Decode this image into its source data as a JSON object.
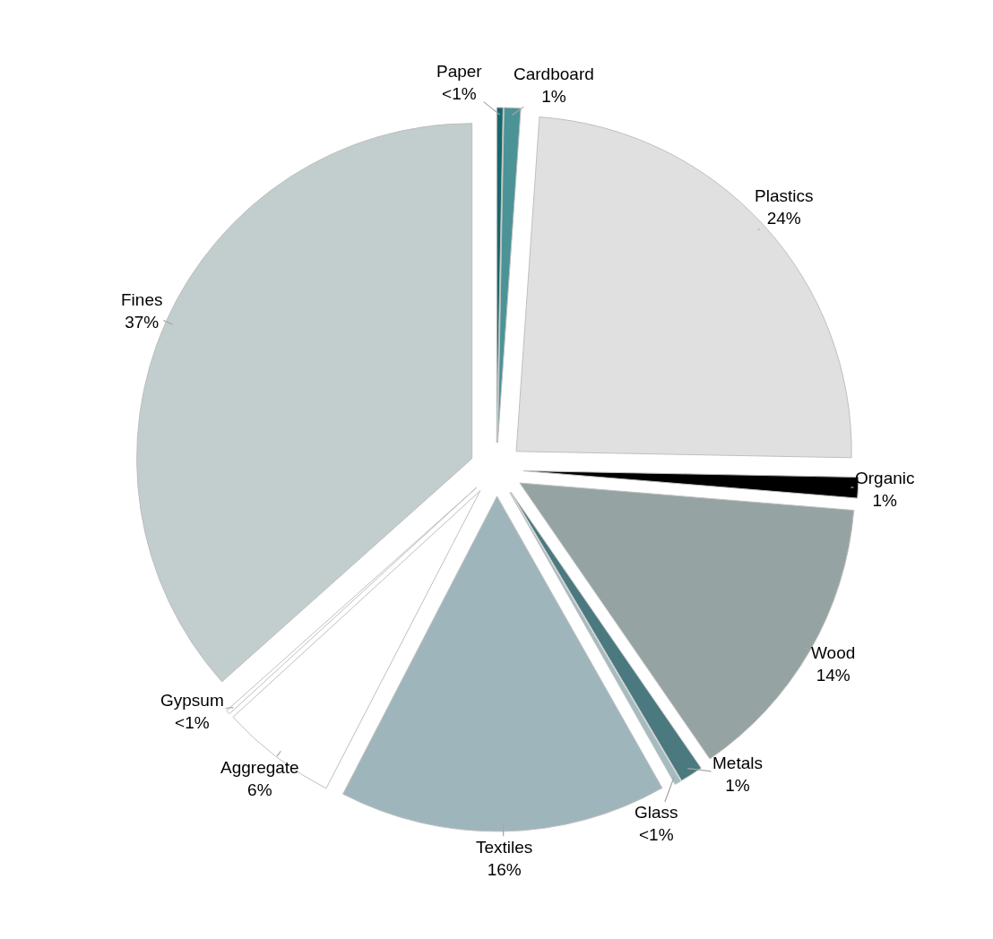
{
  "chart_data": {
    "type": "pie",
    "categories": [
      "Paper",
      "Cardboard",
      "Plastics",
      "Organic",
      "Wood",
      "Metals",
      "Glass",
      "Textiles",
      "Aggregate",
      "Gypsum",
      "Fines"
    ],
    "values": [
      0.3,
      0.8,
      24.2,
      1,
      14.1,
      1.1,
      0.3,
      15.8,
      5.6,
      0.2,
      36.6
    ],
    "value_labels": [
      "<1%",
      "1%",
      "24%",
      "1%",
      "14%",
      "1%",
      "<1%",
      "16%",
      "6%",
      "<1%",
      "37%"
    ],
    "colors": [
      "#17676b",
      "#4b9396",
      "#e0e0e0",
      "#000000",
      "#95a3a3",
      "#4a7980",
      "#a3bcc0",
      "#9eb6bb",
      "#ffffff",
      "#ffffff",
      "#c2cdce"
    ],
    "legend": false
  }
}
